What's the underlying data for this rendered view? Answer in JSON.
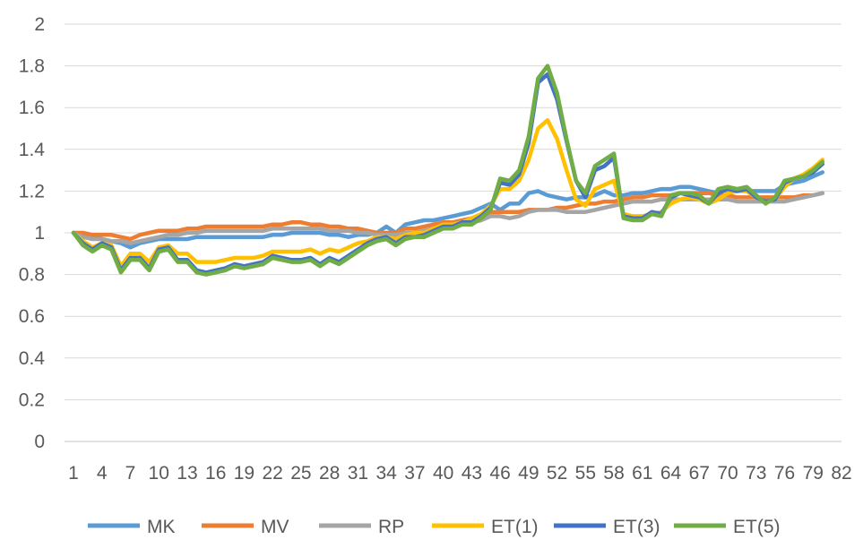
{
  "chart_data": {
    "type": "line",
    "title": "",
    "xlabel": "",
    "ylabel": "",
    "ylim": [
      0,
      2
    ],
    "y_ticks": [
      "0",
      "0.2",
      "0.4",
      "0.6",
      "0.8",
      "1",
      "1.2",
      "1.4",
      "1.6",
      "1.8",
      "2"
    ],
    "x_range": [
      1,
      82
    ],
    "x_ticks": [
      "1",
      "4",
      "7",
      "10",
      "13",
      "16",
      "19",
      "22",
      "25",
      "28",
      "31",
      "34",
      "37",
      "40",
      "43",
      "46",
      "49",
      "52",
      "55",
      "58",
      "61",
      "64",
      "67",
      "70",
      "73",
      "76",
      "79",
      "82"
    ],
    "grid": "horizontal",
    "legend_position": "bottom",
    "series": [
      {
        "name": "MK",
        "color": "#5B9BD5",
        "values": [
          1.0,
          0.99,
          0.98,
          0.97,
          0.96,
          0.95,
          0.93,
          0.95,
          0.96,
          0.97,
          0.97,
          0.97,
          0.97,
          0.98,
          0.98,
          0.98,
          0.98,
          0.98,
          0.98,
          0.98,
          0.98,
          0.99,
          0.99,
          1.0,
          1.0,
          1.0,
          1.0,
          0.99,
          0.99,
          0.98,
          0.99,
          0.99,
          1.0,
          1.03,
          1.0,
          1.04,
          1.05,
          1.06,
          1.06,
          1.07,
          1.08,
          1.09,
          1.1,
          1.12,
          1.14,
          1.11,
          1.14,
          1.14,
          1.19,
          1.2,
          1.18,
          1.17,
          1.16,
          1.17,
          1.17,
          1.18,
          1.2,
          1.18,
          1.18,
          1.19,
          1.19,
          1.2,
          1.21,
          1.21,
          1.22,
          1.22,
          1.21,
          1.2,
          1.19,
          1.21,
          1.21,
          1.2,
          1.2,
          1.2,
          1.2,
          1.23,
          1.24,
          1.25,
          1.27,
          1.29
        ]
      },
      {
        "name": "MV",
        "color": "#ED7D31",
        "values": [
          1.0,
          1.0,
          0.99,
          0.99,
          0.99,
          0.98,
          0.97,
          0.99,
          1.0,
          1.01,
          1.01,
          1.01,
          1.02,
          1.02,
          1.03,
          1.03,
          1.03,
          1.03,
          1.03,
          1.03,
          1.03,
          1.04,
          1.04,
          1.05,
          1.05,
          1.04,
          1.04,
          1.03,
          1.03,
          1.02,
          1.02,
          1.01,
          1.0,
          1.0,
          1.0,
          1.02,
          1.02,
          1.03,
          1.04,
          1.05,
          1.05,
          1.06,
          1.07,
          1.08,
          1.1,
          1.1,
          1.1,
          1.1,
          1.11,
          1.11,
          1.11,
          1.12,
          1.12,
          1.13,
          1.14,
          1.14,
          1.15,
          1.15,
          1.16,
          1.17,
          1.17,
          1.18,
          1.18,
          1.18,
          1.19,
          1.19,
          1.19,
          1.19,
          1.18,
          1.18,
          1.17,
          1.17,
          1.17,
          1.17,
          1.17,
          1.17,
          1.17,
          1.18,
          1.18,
          1.19
        ]
      },
      {
        "name": "RP",
        "color": "#A5A5A5",
        "values": [
          1.0,
          0.98,
          0.97,
          0.97,
          0.96,
          0.96,
          0.95,
          0.96,
          0.97,
          0.98,
          0.99,
          0.99,
          1.0,
          1.0,
          1.01,
          1.01,
          1.01,
          1.01,
          1.01,
          1.01,
          1.01,
          1.02,
          1.02,
          1.02,
          1.02,
          1.02,
          1.02,
          1.01,
          1.01,
          1.01,
          1.0,
          1.0,
          0.99,
          0.99,
          0.99,
          1.0,
          1.0,
          1.01,
          1.02,
          1.03,
          1.03,
          1.04,
          1.05,
          1.06,
          1.08,
          1.08,
          1.07,
          1.08,
          1.1,
          1.11,
          1.11,
          1.11,
          1.1,
          1.1,
          1.1,
          1.11,
          1.12,
          1.13,
          1.14,
          1.15,
          1.15,
          1.15,
          1.16,
          1.16,
          1.16,
          1.16,
          1.16,
          1.16,
          1.16,
          1.16,
          1.15,
          1.15,
          1.15,
          1.15,
          1.15,
          1.15,
          1.16,
          1.17,
          1.18,
          1.19
        ]
      },
      {
        "name": "ET(1)",
        "color": "#FFC000",
        "values": [
          1.0,
          0.96,
          0.93,
          0.95,
          0.94,
          0.84,
          0.9,
          0.9,
          0.86,
          0.93,
          0.94,
          0.9,
          0.9,
          0.86,
          0.86,
          0.86,
          0.87,
          0.88,
          0.88,
          0.88,
          0.89,
          0.91,
          0.91,
          0.91,
          0.91,
          0.92,
          0.9,
          0.92,
          0.91,
          0.93,
          0.95,
          0.96,
          0.98,
          0.98,
          0.97,
          0.99,
          1.0,
          1.0,
          1.02,
          1.04,
          1.04,
          1.05,
          1.07,
          1.09,
          1.13,
          1.21,
          1.21,
          1.25,
          1.35,
          1.5,
          1.54,
          1.45,
          1.3,
          1.16,
          1.13,
          1.21,
          1.23,
          1.25,
          1.09,
          1.08,
          1.08,
          1.09,
          1.1,
          1.14,
          1.16,
          1.17,
          1.16,
          1.14,
          1.16,
          1.19,
          1.2,
          1.2,
          1.17,
          1.15,
          1.16,
          1.22,
          1.26,
          1.28,
          1.31,
          1.35
        ]
      },
      {
        "name": "ET(3)",
        "color": "#4472C4",
        "values": [
          1.0,
          0.95,
          0.92,
          0.95,
          0.93,
          0.82,
          0.88,
          0.88,
          0.83,
          0.92,
          0.93,
          0.87,
          0.87,
          0.82,
          0.81,
          0.82,
          0.83,
          0.85,
          0.84,
          0.85,
          0.86,
          0.89,
          0.88,
          0.87,
          0.87,
          0.88,
          0.85,
          0.88,
          0.86,
          0.89,
          0.92,
          0.95,
          0.97,
          0.98,
          0.95,
          0.98,
          0.98,
          0.99,
          1.01,
          1.03,
          1.03,
          1.05,
          1.05,
          1.08,
          1.12,
          1.24,
          1.23,
          1.28,
          1.43,
          1.72,
          1.76,
          1.64,
          1.44,
          1.25,
          1.17,
          1.3,
          1.32,
          1.36,
          1.08,
          1.07,
          1.07,
          1.1,
          1.09,
          1.17,
          1.19,
          1.18,
          1.17,
          1.14,
          1.19,
          1.21,
          1.2,
          1.21,
          1.17,
          1.15,
          1.16,
          1.24,
          1.26,
          1.27,
          1.29,
          1.33
        ]
      },
      {
        "name": "ET(5)",
        "color": "#70AD47",
        "values": [
          1.0,
          0.94,
          0.91,
          0.94,
          0.92,
          0.81,
          0.87,
          0.87,
          0.82,
          0.91,
          0.92,
          0.86,
          0.86,
          0.81,
          0.8,
          0.81,
          0.82,
          0.84,
          0.83,
          0.84,
          0.85,
          0.88,
          0.87,
          0.86,
          0.86,
          0.87,
          0.84,
          0.87,
          0.85,
          0.88,
          0.91,
          0.94,
          0.96,
          0.97,
          0.94,
          0.97,
          0.98,
          0.98,
          1.0,
          1.02,
          1.02,
          1.04,
          1.04,
          1.07,
          1.11,
          1.26,
          1.25,
          1.3,
          1.46,
          1.74,
          1.8,
          1.67,
          1.45,
          1.25,
          1.19,
          1.32,
          1.35,
          1.38,
          1.07,
          1.06,
          1.06,
          1.09,
          1.08,
          1.18,
          1.19,
          1.19,
          1.18,
          1.14,
          1.21,
          1.22,
          1.21,
          1.22,
          1.18,
          1.14,
          1.17,
          1.25,
          1.26,
          1.27,
          1.3,
          1.34
        ]
      }
    ]
  }
}
